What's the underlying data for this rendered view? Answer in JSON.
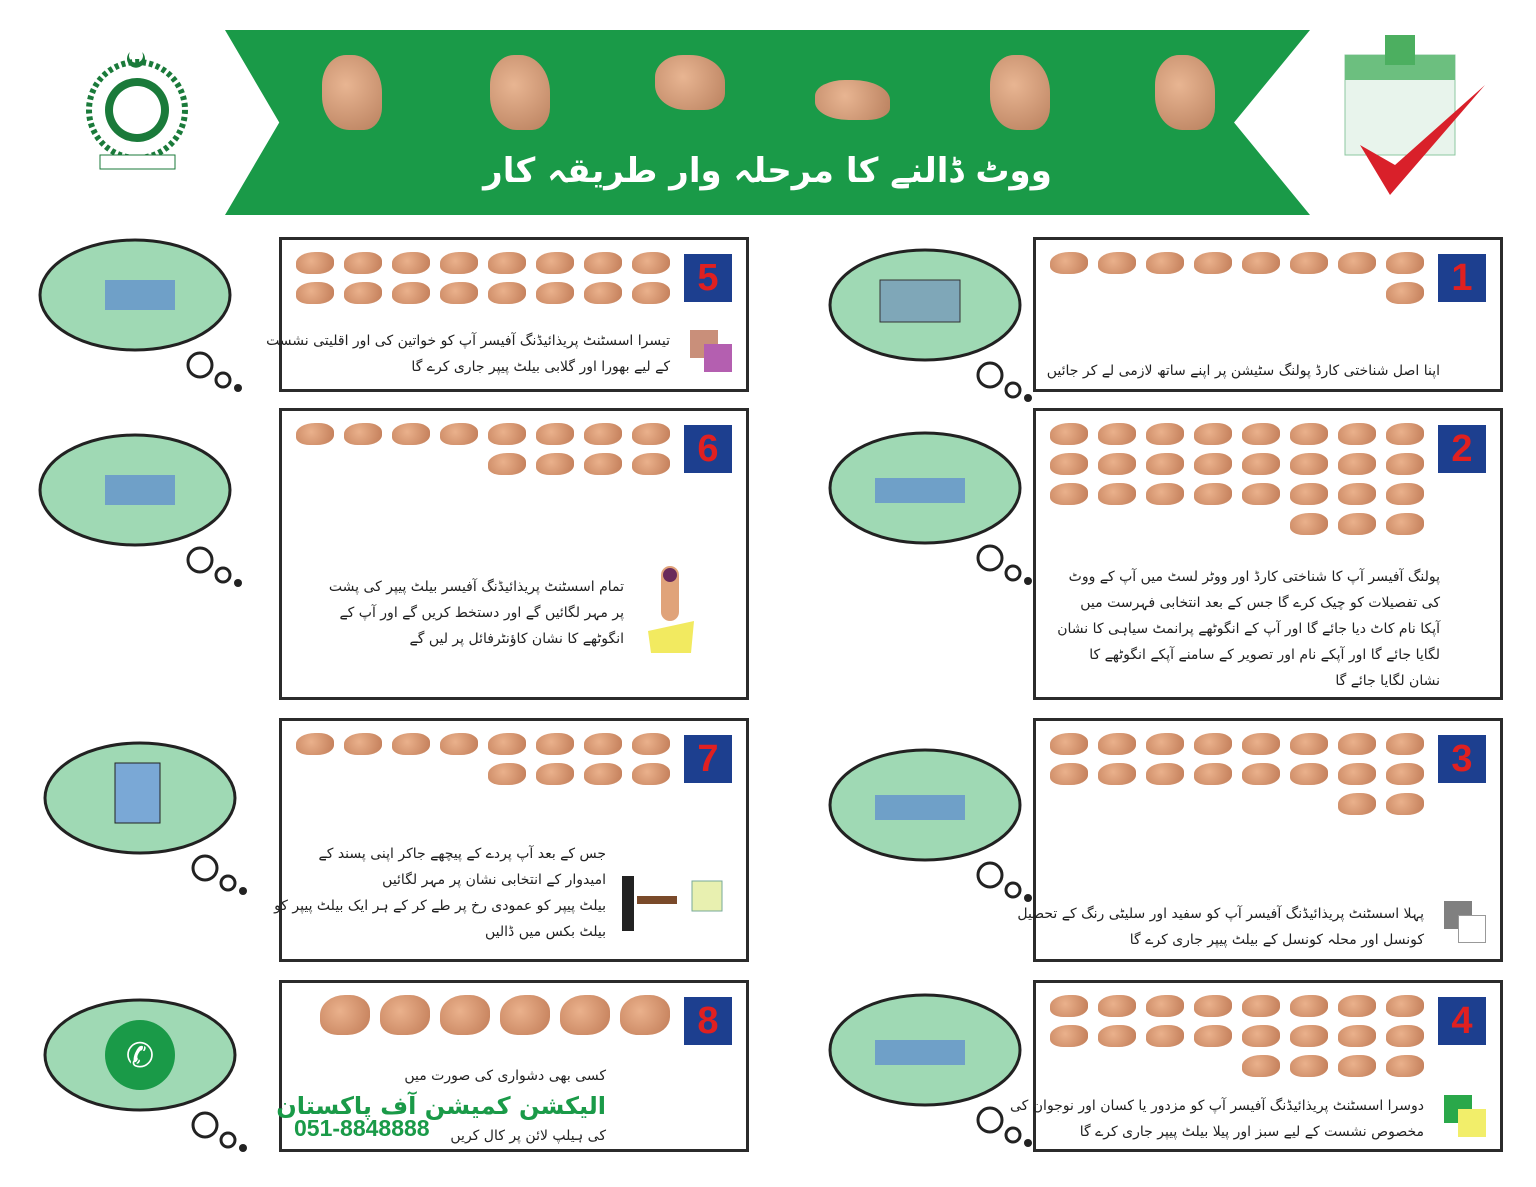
{
  "header": {
    "title": "ووٹ ڈالنے کا مرحلہ وار طریقہ کار",
    "logo": "election-commission-of-pakistan-emblem",
    "ballot_icon": "ballot-box-checkmark",
    "banner_color": "#1a9a48"
  },
  "steps": [
    {
      "number": "1",
      "lines": [
        "اپنا اصل شناختی کارڈ پولنگ سٹیشن پر اپنے ساتھ لازمی لے کر جائیں"
      ],
      "cloud_icon": "id-card"
    },
    {
      "number": "2",
      "lines": [
        "پولنگ آفیسر آپ کا شناختی کارڈ اور ووٹر لسٹ میں آپ کے ووٹ",
        "کی تفصیلات کو چیک کرے گا جس کے بعد انتخابی فہرست میں",
        "آپکا نام کاٹ دیا جائے گا اور آپ کے انگوٹھے پرانمٹ سیاہی کا نشان",
        "لگایا جائے گا اور آپکے نام اور تصویر کے سامنے آپکے انگوٹھے کا",
        "نشان لگایا جائے گا"
      ],
      "cloud_icon": "polling-officer-desk"
    },
    {
      "number": "3",
      "lines": [
        "پہلا اسسٹنٹ پریذائیڈنگ آفیسر آپ کو سفید اور سلیٹی رنگ کے تحصیل",
        "کونسل اور محلہ کونسل کے بیلٹ پیپر جاری کرے گا"
      ],
      "colors": [
        "#808080",
        "#ffffff"
      ]
    },
    {
      "number": "4",
      "lines": [
        "دوسرا اسسٹنٹ پریذائیڈنگ آفیسر آپ کو مزدور یا کسان اور نوجوان کی",
        "مخصوص نشست کے لیے سبز اور پیلا بیلٹ پیپر جاری کرے گا"
      ],
      "colors": [
        "#2aa84a",
        "#f2ee6a"
      ]
    },
    {
      "number": "5",
      "lines": [
        "تیسرا اسسٹنٹ پریذائیڈنگ آفیسر آپ کو خواتین کی اور اقلیتی نشست",
        "کے لیے بھورا اور گلابی بیلٹ پیپر جاری کرے گا"
      ],
      "colors": [
        "#c98f7a",
        "#b45fb0"
      ]
    },
    {
      "number": "6",
      "lines": [
        "تمام اسسٹنٹ پریذائیڈنگ آفیسر بیلٹ پیپر کی پشت",
        "پر مہر لگائیں گے اور دستخط کریں گے اور آپ کے",
        "انگوٹھے کا نشان کاؤنٹرفائل پر لیں گے"
      ]
    },
    {
      "number": "7",
      "lines": [
        "جس کے بعد آپ پردے کے پیچھے جاکر اپنی پسند کے",
        "امیدوار کے انتخابی نشان پر مہر لگائیں",
        "بیلٹ پیپر کو عمودی رخ پر طے کر کے ہر ایک بیلٹ پیپر کو",
        "بیلٹ بکس میں ڈالیں"
      ],
      "cloud_icon": "voting-booth"
    },
    {
      "number": "8",
      "line1": "کسی بھی دشواری کی صورت میں",
      "ecp": "الیکشن کمیشن آف پاکستان",
      "line2": "کی ہیلپ لائن پر کال کریں",
      "phone": "051-8848888",
      "cloud_icon": "phone"
    }
  ],
  "colors": {
    "cloud": "#9fd9b4",
    "number_bg": "#1d3f8f",
    "number_text": "#e02020"
  }
}
